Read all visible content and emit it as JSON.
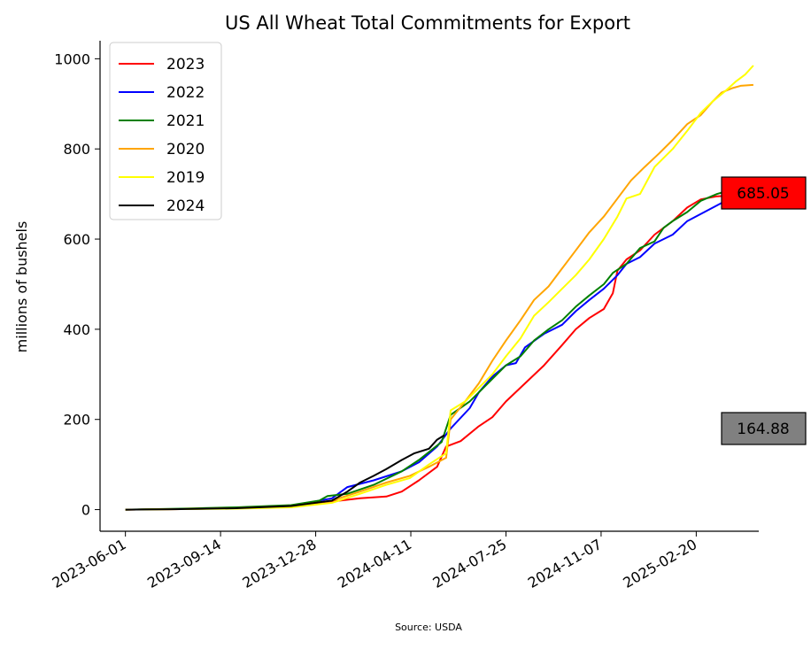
{
  "chart_data": {
    "type": "line",
    "title": "US All Wheat Total Commitments for Export",
    "xlabel": "",
    "ylabel": "millions of bushels",
    "source": "Source: USDA",
    "x_axis": {
      "type": "date",
      "range": [
        "2023-05-04",
        "2025-04-30"
      ],
      "tick_labels": [
        "2023-06-01",
        "2023-09-14",
        "2023-12-28",
        "2024-04-11",
        "2024-07-25",
        "2024-11-07",
        "2025-02-20"
      ]
    },
    "y_axis": {
      "range": [
        -48,
        1040
      ],
      "ticks": [
        0,
        200,
        400,
        600,
        800,
        1000
      ]
    },
    "grid": false,
    "legend_position": "top-left",
    "end_labels": [
      {
        "text": "685.05",
        "color": "#ff0000"
      },
      {
        "text": "164.88",
        "color": "#808080"
      }
    ],
    "series": [
      {
        "name": "2023",
        "color": "#ff0000",
        "points": [
          [
            "2023-06-01",
            0
          ],
          [
            "2023-08-01",
            1
          ],
          [
            "2023-10-01",
            3
          ],
          [
            "2023-12-01",
            8
          ],
          [
            "2024-01-15",
            18
          ],
          [
            "2024-02-15",
            25
          ],
          [
            "2024-03-15",
            29
          ],
          [
            "2024-04-01",
            40
          ],
          [
            "2024-04-20",
            65
          ],
          [
            "2024-05-10",
            95
          ],
          [
            "2024-05-20",
            140
          ],
          [
            "2024-06-05",
            152
          ],
          [
            "2024-06-25",
            185
          ],
          [
            "2024-07-10",
            205
          ],
          [
            "2024-07-25",
            240
          ],
          [
            "2024-08-15",
            280
          ],
          [
            "2024-09-05",
            320
          ],
          [
            "2024-09-25",
            365
          ],
          [
            "2024-10-10",
            400
          ],
          [
            "2024-10-25",
            425
          ],
          [
            "2024-11-10",
            445
          ],
          [
            "2024-11-20",
            480
          ],
          [
            "2024-11-25",
            530
          ],
          [
            "2024-12-05",
            555
          ],
          [
            "2024-12-20",
            575
          ],
          [
            "2025-01-05",
            610
          ],
          [
            "2025-01-25",
            640
          ],
          [
            "2025-02-10",
            670
          ],
          [
            "2025-02-25",
            688
          ],
          [
            "2025-03-15",
            695
          ],
          [
            "2025-04-01",
            697
          ],
          [
            "2025-04-24",
            690
          ]
        ]
      },
      {
        "name": "2022",
        "color": "#0000ff",
        "points": [
          [
            "2023-06-01",
            0
          ],
          [
            "2023-08-01",
            1
          ],
          [
            "2023-10-01",
            3
          ],
          [
            "2023-12-01",
            8
          ],
          [
            "2024-01-15",
            25
          ],
          [
            "2024-02-01",
            50
          ],
          [
            "2024-03-01",
            65
          ],
          [
            "2024-04-01",
            85
          ],
          [
            "2024-04-20",
            105
          ],
          [
            "2024-05-10",
            140
          ],
          [
            "2024-05-25",
            180
          ],
          [
            "2024-06-15",
            225
          ],
          [
            "2024-06-25",
            260
          ],
          [
            "2024-07-10",
            295
          ],
          [
            "2024-07-25",
            320
          ],
          [
            "2024-08-05",
            325
          ],
          [
            "2024-08-15",
            360
          ],
          [
            "2024-09-05",
            390
          ],
          [
            "2024-09-25",
            410
          ],
          [
            "2024-10-10",
            440
          ],
          [
            "2024-10-25",
            465
          ],
          [
            "2024-11-10",
            490
          ],
          [
            "2024-11-25",
            520
          ],
          [
            "2024-12-05",
            545
          ],
          [
            "2024-12-20",
            560
          ],
          [
            "2025-01-05",
            590
          ],
          [
            "2025-01-25",
            610
          ],
          [
            "2025-02-10",
            640
          ],
          [
            "2025-03-01",
            660
          ],
          [
            "2025-03-20",
            680
          ],
          [
            "2025-04-05",
            694
          ],
          [
            "2025-04-24",
            686
          ]
        ]
      },
      {
        "name": "2021",
        "color": "#008000",
        "points": [
          [
            "2023-06-01",
            0
          ],
          [
            "2023-08-01",
            2
          ],
          [
            "2023-10-01",
            5
          ],
          [
            "2023-12-01",
            10
          ],
          [
            "2024-01-01",
            20
          ],
          [
            "2024-01-10",
            30
          ],
          [
            "2024-02-01",
            35
          ],
          [
            "2024-03-01",
            55
          ],
          [
            "2024-04-01",
            85
          ],
          [
            "2024-04-20",
            110
          ],
          [
            "2024-05-15",
            150
          ],
          [
            "2024-05-25",
            210
          ],
          [
            "2024-06-15",
            240
          ],
          [
            "2024-06-25",
            260
          ],
          [
            "2024-07-10",
            290
          ],
          [
            "2024-07-25",
            320
          ],
          [
            "2024-08-10",
            340
          ],
          [
            "2024-08-25",
            375
          ],
          [
            "2024-09-10",
            400
          ],
          [
            "2024-09-25",
            420
          ],
          [
            "2024-10-10",
            450
          ],
          [
            "2024-10-25",
            475
          ],
          [
            "2024-11-10",
            500
          ],
          [
            "2024-11-20",
            525
          ],
          [
            "2024-12-05",
            545
          ],
          [
            "2024-12-20",
            580
          ],
          [
            "2025-01-05",
            595
          ],
          [
            "2025-01-15",
            625
          ],
          [
            "2025-01-25",
            640
          ],
          [
            "2025-02-10",
            660
          ],
          [
            "2025-02-25",
            685
          ],
          [
            "2025-03-15",
            700
          ],
          [
            "2025-04-01",
            710
          ],
          [
            "2025-04-24",
            712
          ]
        ]
      },
      {
        "name": "2020",
        "color": "#ffa500",
        "points": [
          [
            "2023-06-01",
            0
          ],
          [
            "2023-08-01",
            1
          ],
          [
            "2023-10-01",
            3
          ],
          [
            "2023-12-01",
            8
          ],
          [
            "2024-01-15",
            20
          ],
          [
            "2024-02-15",
            40
          ],
          [
            "2024-03-15",
            60
          ],
          [
            "2024-04-10",
            75
          ],
          [
            "2024-05-01",
            95
          ],
          [
            "2024-05-20",
            115
          ],
          [
            "2024-05-25",
            200
          ],
          [
            "2024-06-10",
            240
          ],
          [
            "2024-06-25",
            280
          ],
          [
            "2024-07-10",
            330
          ],
          [
            "2024-07-25",
            375
          ],
          [
            "2024-08-10",
            420
          ],
          [
            "2024-08-25",
            465
          ],
          [
            "2024-09-10",
            495
          ],
          [
            "2024-09-25",
            535
          ],
          [
            "2024-10-10",
            575
          ],
          [
            "2024-10-25",
            615
          ],
          [
            "2024-11-10",
            650
          ],
          [
            "2024-11-25",
            690
          ],
          [
            "2024-12-10",
            730
          ],
          [
            "2024-12-25",
            760
          ],
          [
            "2025-01-10",
            790
          ],
          [
            "2025-01-25",
            820
          ],
          [
            "2025-02-10",
            855
          ],
          [
            "2025-02-25",
            875
          ],
          [
            "2025-03-10",
            905
          ],
          [
            "2025-03-20",
            925
          ],
          [
            "2025-04-01",
            935
          ],
          [
            "2025-04-10",
            940
          ],
          [
            "2025-04-24",
            942
          ]
        ]
      },
      {
        "name": "2019",
        "color": "#ffff00",
        "points": [
          [
            "2023-06-01",
            0
          ],
          [
            "2023-08-01",
            1
          ],
          [
            "2023-10-01",
            2
          ],
          [
            "2023-12-01",
            5
          ],
          [
            "2024-01-15",
            15
          ],
          [
            "2024-02-15",
            35
          ],
          [
            "2024-03-15",
            55
          ],
          [
            "2024-04-10",
            70
          ],
          [
            "2024-05-01",
            100
          ],
          [
            "2024-05-20",
            125
          ],
          [
            "2024-05-25",
            220
          ],
          [
            "2024-06-10",
            240
          ],
          [
            "2024-06-25",
            270
          ],
          [
            "2024-07-10",
            300
          ],
          [
            "2024-07-25",
            340
          ],
          [
            "2024-08-10",
            380
          ],
          [
            "2024-08-25",
            430
          ],
          [
            "2024-09-10",
            460
          ],
          [
            "2024-09-25",
            490
          ],
          [
            "2024-10-10",
            520
          ],
          [
            "2024-10-25",
            555
          ],
          [
            "2024-11-10",
            600
          ],
          [
            "2024-11-25",
            650
          ],
          [
            "2024-12-05",
            690
          ],
          [
            "2024-12-20",
            700
          ],
          [
            "2025-01-05",
            760
          ],
          [
            "2025-01-25",
            800
          ],
          [
            "2025-02-10",
            840
          ],
          [
            "2025-02-25",
            880
          ],
          [
            "2025-03-10",
            905
          ],
          [
            "2025-03-25",
            930
          ],
          [
            "2025-04-05",
            950
          ],
          [
            "2025-04-15",
            965
          ],
          [
            "2025-04-24",
            985
          ]
        ]
      },
      {
        "name": "2024",
        "color": "#000000",
        "points": [
          [
            "2023-06-01",
            0
          ],
          [
            "2023-08-01",
            1
          ],
          [
            "2023-10-01",
            3
          ],
          [
            "2023-12-01",
            8
          ],
          [
            "2024-01-15",
            20
          ],
          [
            "2024-02-01",
            40
          ],
          [
            "2024-02-15",
            60
          ],
          [
            "2024-03-01",
            75
          ],
          [
            "2024-03-15",
            90
          ],
          [
            "2024-04-01",
            110
          ],
          [
            "2024-04-15",
            125
          ],
          [
            "2024-05-01",
            135
          ],
          [
            "2024-05-10",
            155
          ],
          [
            "2024-05-18",
            165
          ]
        ]
      }
    ]
  }
}
